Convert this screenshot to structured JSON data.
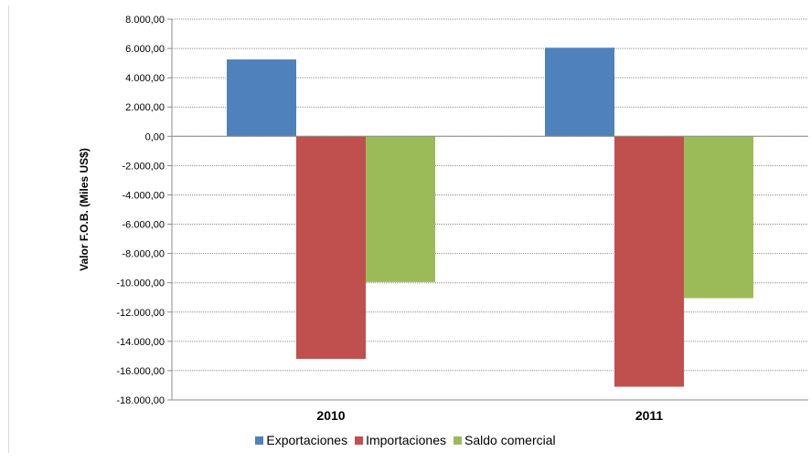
{
  "chart_data": {
    "type": "bar",
    "title": "",
    "xlabel": "",
    "ylabel": "Valor F.O.B. (Miles US$)",
    "categories": [
      "2010",
      "2011"
    ],
    "series": [
      {
        "name": "Exportaciones",
        "values": [
          5250,
          6050
        ],
        "color": "#4f81bd"
      },
      {
        "name": "Importaciones",
        "values": [
          -15200,
          -17100
        ],
        "color": "#c0504d"
      },
      {
        "name": "Saldo comercial",
        "values": [
          -9950,
          -11050
        ],
        "color": "#9bbb59"
      }
    ],
    "ylim": [
      -18000,
      8000
    ],
    "yticks": [
      8000,
      6000,
      4000,
      2000,
      0,
      -2000,
      -4000,
      -6000,
      -8000,
      -10000,
      -12000,
      -14000,
      -16000,
      -18000
    ],
    "ytick_labels": [
      "8.000,00",
      "6.000,00",
      "4.000,00",
      "2.000,00",
      "0,00",
      "-2.000,00",
      "-4.000,00",
      "-6.000,00",
      "-8.000,00",
      "-10.000,00",
      "-12.000,00",
      "-14.000,00",
      "-16.000,00",
      "-18.000,00"
    ],
    "grid": true,
    "legend_position": "bottom"
  }
}
